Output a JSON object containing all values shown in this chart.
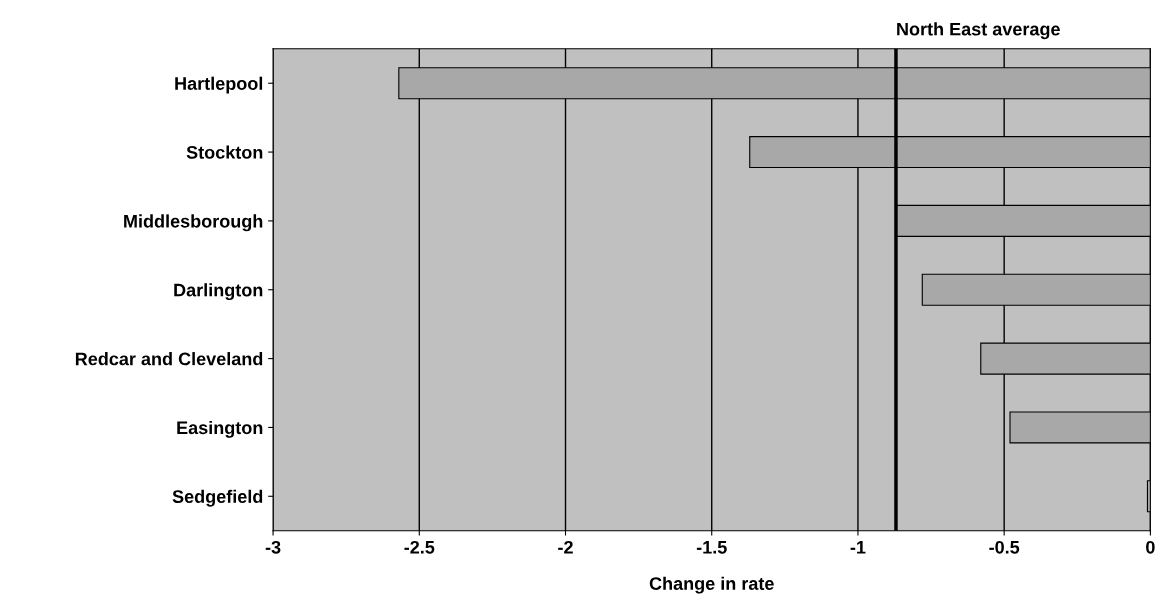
{
  "chart_data": {
    "type": "bar",
    "orientation": "horizontal",
    "xlabel": "Change in rate",
    "categories": [
      "Hartlepool",
      "Stockton",
      "Middlesborough",
      "Darlington",
      "Redcar and Cleveland",
      "Easington",
      "Sedgefield"
    ],
    "values": [
      -2.57,
      -1.37,
      -0.87,
      -0.78,
      -0.58,
      -0.48,
      -0.01
    ],
    "color": "#a8a8a8",
    "xlim": [
      -3,
      0
    ],
    "xticks": [
      -3,
      -2.5,
      -2,
      -1.5,
      -1,
      -0.5,
      0
    ],
    "grid": "x",
    "ref_lines": [
      {
        "axis": "x",
        "value": -0.87,
        "label": "North East average",
        "color": "#000000",
        "line_style": "solid"
      }
    ]
  }
}
